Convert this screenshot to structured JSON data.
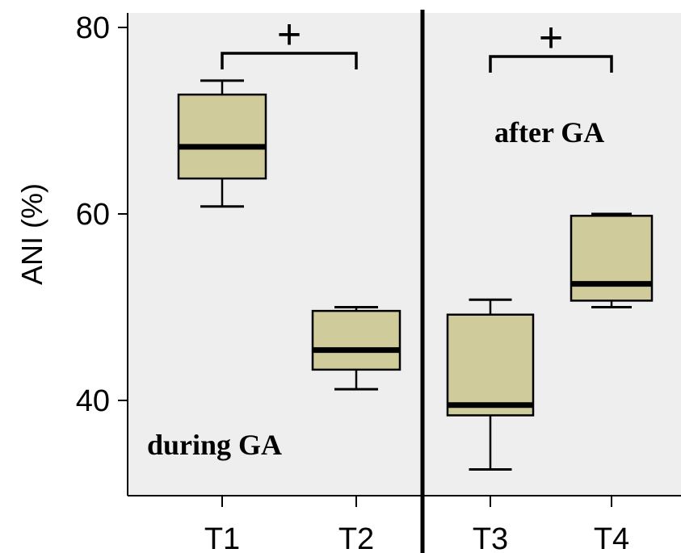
{
  "chart_data": {
    "type": "box",
    "title": "",
    "ylabel": "ANI (%)",
    "xlabel": "",
    "ylim": [
      30,
      80
    ],
    "yticks": [
      40,
      60,
      80
    ],
    "categories": [
      "T1",
      "T2",
      "T3",
      "T4"
    ],
    "boxes": [
      {
        "category": "T1",
        "whisker_low": 60.8,
        "q1": 63.8,
        "median": 67.2,
        "q3": 72.8,
        "whisker_high": 74.3
      },
      {
        "category": "T2",
        "whisker_low": 41.2,
        "q1": 43.3,
        "median": 45.4,
        "q3": 49.6,
        "whisker_high": 50.0
      },
      {
        "category": "T3",
        "whisker_low": 32.6,
        "q1": 38.4,
        "median": 39.5,
        "q3": 49.2,
        "whisker_high": 50.8
      },
      {
        "category": "T4",
        "whisker_low": 50.0,
        "q1": 50.7,
        "median": 52.5,
        "q3": 59.8,
        "whisker_high": 60.0
      }
    ],
    "groups": [
      {
        "label": "during GA",
        "categories": [
          "T1",
          "T2"
        ]
      },
      {
        "label": "after GA",
        "categories": [
          "T3",
          "T4"
        ]
      }
    ],
    "significance": [
      {
        "from": "T1",
        "to": "T2",
        "symbol": "+"
      },
      {
        "from": "T3",
        "to": "T4",
        "symbol": "+"
      }
    ],
    "colors": {
      "box_fill": "#d0cb9b",
      "box_stroke": "#000000",
      "plot_background": "#eeeeee",
      "page_background": "#ffffff"
    },
    "grid": false
  }
}
